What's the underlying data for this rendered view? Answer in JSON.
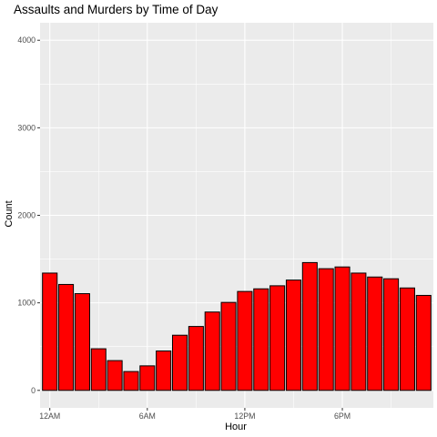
{
  "chart_data": {
    "type": "bar",
    "title": "Assaults and Murders by Time of Day",
    "xlabel": "Hour",
    "ylabel": "Count",
    "x": [
      0,
      1,
      2,
      3,
      4,
      5,
      6,
      7,
      8,
      9,
      10,
      11,
      12,
      13,
      14,
      15,
      16,
      17,
      18,
      19,
      20,
      21,
      22,
      23
    ],
    "values": [
      1340,
      1210,
      1105,
      475,
      340,
      215,
      280,
      450,
      630,
      730,
      895,
      1005,
      1130,
      1160,
      1195,
      1260,
      1460,
      1390,
      1410,
      1340,
      1295,
      1275,
      1170,
      1085
    ],
    "ylim": [
      0,
      4000
    ],
    "yticks": [
      0,
      1000,
      2000,
      3000,
      4000
    ],
    "xticks": [
      {
        "pos": 0,
        "label": "12AM"
      },
      {
        "pos": 6,
        "label": "6AM"
      },
      {
        "pos": 12,
        "label": "12PM"
      },
      {
        "pos": 18,
        "label": "6PM"
      }
    ],
    "bar_fill": "#ff0000",
    "bar_stroke": "#000000",
    "panel_background": "#ebebeb",
    "grid_color": "#ffffff",
    "grid": true,
    "legend": "none"
  }
}
